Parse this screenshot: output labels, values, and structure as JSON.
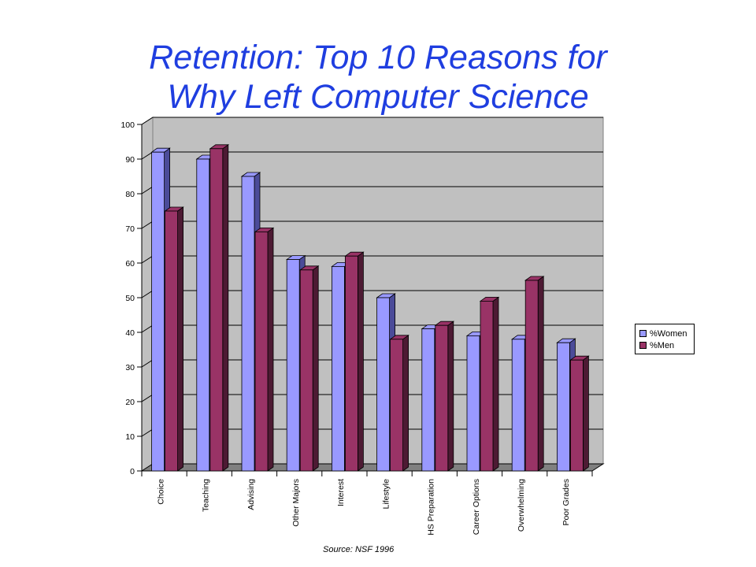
{
  "title_lines": [
    "Retention: Top 10 Reasons for",
    "Why Left Computer Science"
  ],
  "source": "Source: NSF 1996",
  "colors": {
    "women_front": "#9999ff",
    "women_side": "#4b4b99",
    "men_front": "#993366",
    "men_side": "#4d1a33",
    "wall": "#c0c0c0",
    "floor": "#808080"
  },
  "chart_data": {
    "type": "bar",
    "title": "Retention: Top 10 Reasons for Why Left Computer Science",
    "xlabel": "",
    "ylabel": "",
    "ylim": [
      0,
      100
    ],
    "yticks": [
      "0",
      "10",
      "20",
      "30",
      "40",
      "50",
      "60",
      "70",
      "80",
      "90",
      "100"
    ],
    "categories": [
      "Choice",
      "Teaching",
      "Advising",
      "Other Majors",
      "Interest",
      "Lifestyle",
      "HS Preparation",
      "Career Options",
      "Overwhelming",
      "Poor Grades"
    ],
    "series": [
      {
        "name": "%Women",
        "values": [
          92,
          90,
          85,
          61,
          59,
          50,
          41,
          39,
          38,
          37
        ]
      },
      {
        "name": "%Men",
        "values": [
          75,
          93,
          69,
          58,
          62,
          38,
          42,
          49,
          55,
          32
        ]
      }
    ],
    "grid": true,
    "legend_position": "right"
  }
}
